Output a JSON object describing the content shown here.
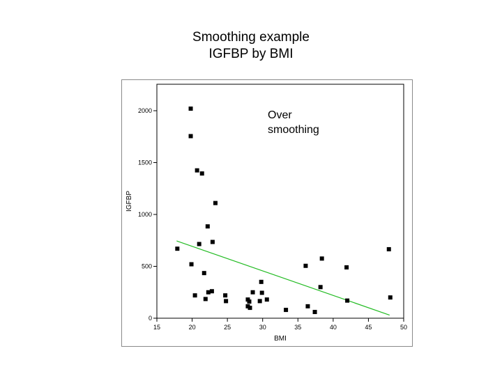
{
  "slide": {
    "title_line1": "Smoothing example",
    "title_line2": "IGFBP by BMI",
    "annotation": "Over\nsmoothing"
  },
  "chart_data": {
    "type": "scatter",
    "title": "",
    "xlabel": "BMI",
    "ylabel": "IGFBP",
    "xlim": [
      15,
      50
    ],
    "ylim": [
      0,
      2200
    ],
    "xticks": [
      15,
      20,
      25,
      30,
      35,
      40,
      45,
      50
    ],
    "yticks": [
      0,
      500,
      1000,
      1500,
      2000
    ],
    "grid": false,
    "colors": {
      "points": "#000000",
      "fit_line": "#22bb22",
      "axes": "#000000"
    },
    "points": [
      {
        "x": 17.9,
        "y": 670
      },
      {
        "x": 19.8,
        "y": 2020
      },
      {
        "x": 19.8,
        "y": 1755
      },
      {
        "x": 19.9,
        "y": 520
      },
      {
        "x": 20.4,
        "y": 220
      },
      {
        "x": 20.7,
        "y": 1425
      },
      {
        "x": 21.0,
        "y": 715
      },
      {
        "x": 21.4,
        "y": 1395
      },
      {
        "x": 21.7,
        "y": 435
      },
      {
        "x": 21.9,
        "y": 185
      },
      {
        "x": 22.2,
        "y": 885
      },
      {
        "x": 22.3,
        "y": 250
      },
      {
        "x": 22.8,
        "y": 260
      },
      {
        "x": 22.9,
        "y": 735
      },
      {
        "x": 23.3,
        "y": 1110
      },
      {
        "x": 24.7,
        "y": 220
      },
      {
        "x": 24.8,
        "y": 165
      },
      {
        "x": 27.9,
        "y": 180
      },
      {
        "x": 27.9,
        "y": 115
      },
      {
        "x": 28.1,
        "y": 160
      },
      {
        "x": 28.2,
        "y": 100
      },
      {
        "x": 28.6,
        "y": 250
      },
      {
        "x": 29.6,
        "y": 165
      },
      {
        "x": 29.8,
        "y": 350
      },
      {
        "x": 29.9,
        "y": 245
      },
      {
        "x": 30.6,
        "y": 180
      },
      {
        "x": 33.3,
        "y": 80
      },
      {
        "x": 36.1,
        "y": 505
      },
      {
        "x": 36.4,
        "y": 115
      },
      {
        "x": 37.4,
        "y": 60
      },
      {
        "x": 38.2,
        "y": 300
      },
      {
        "x": 38.4,
        "y": 575
      },
      {
        "x": 41.9,
        "y": 490
      },
      {
        "x": 42.0,
        "y": 170
      },
      {
        "x": 47.9,
        "y": 665
      },
      {
        "x": 48.1,
        "y": 200
      }
    ],
    "fit_line": {
      "x": [
        17.8,
        48.0
      ],
      "y": [
        745,
        30
      ]
    }
  }
}
